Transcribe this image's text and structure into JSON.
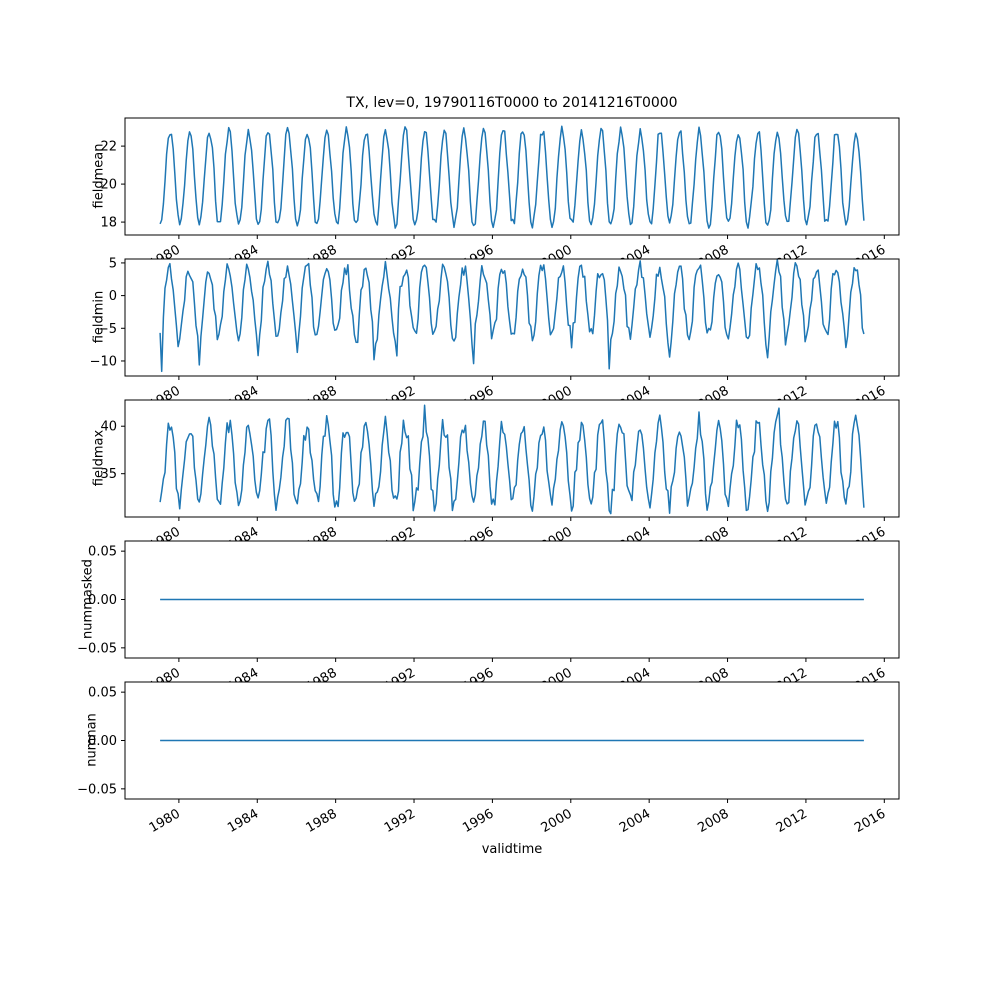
{
  "title": "TX, lev=0, 19790116T0000 to 20141216T0000",
  "xlabel": "validtime",
  "line_color": "#1f77b4",
  "x_ticks": [
    1980,
    1984,
    1988,
    1992,
    1996,
    2000,
    2004,
    2008,
    2012,
    2016
  ],
  "x_tick_rotation": 30,
  "xlim": [
    1977.25,
    2016.75
  ],
  "x_start_year": 1979,
  "n_points": 432,
  "chart_data": [
    {
      "type": "line",
      "name": "fieldmean",
      "ylabel": "fieldmean",
      "yticks": [
        18,
        20,
        22
      ],
      "ytick_labels": [
        "18",
        "20",
        "22"
      ],
      "ylim": [
        17.32,
        23.48
      ],
      "color": "#1f77b4",
      "seed": 11,
      "n_points": 432,
      "monthly_climatology": [
        17.9,
        18.1,
        18.9,
        20.1,
        21.4,
        22.4,
        22.8,
        22.6,
        21.8,
        20.6,
        19.2,
        18.2
      ],
      "noise_amplitude": 0.25,
      "events": {}
    },
    {
      "type": "line",
      "name": "fieldmin",
      "ylabel": "fieldmin",
      "yticks": [
        5,
        0,
        -5,
        -10
      ],
      "ytick_labels": [
        "5",
        "0",
        "−5",
        "−10"
      ],
      "ylim": [
        -12.3,
        5.6
      ],
      "color": "#1f77b4",
      "seed": 22,
      "n_points": 432,
      "monthly_climatology": [
        -6.0,
        -5.2,
        -3.0,
        0.2,
        2.5,
        3.9,
        4.3,
        3.7,
        1.8,
        -1.0,
        -3.8,
        -5.6
      ],
      "noise_amplitude": 1.2,
      "winter_spike": {
        "months": [
          0,
          1,
          11
        ],
        "prob": 0.18,
        "amount": -3.0
      },
      "events": {
        "1979-02": -11.6,
        "1981-01": -10.6,
        "1989-12": -9.8,
        "1995-01": -10.4,
        "2001-12": -11.2,
        "2010-01": -9.5
      }
    },
    {
      "type": "line",
      "name": "fieldmax",
      "ylabel": "fieldmax",
      "yticks": [
        35,
        40
      ],
      "ytick_labels": [
        "35",
        "40"
      ],
      "ylim": [
        30.44,
        42.76
      ],
      "color": "#1f77b4",
      "seed": 33,
      "n_points": 432,
      "monthly_climatology": [
        31.9,
        32.6,
        34.2,
        36.2,
        38.2,
        39.6,
        40.1,
        39.7,
        38.2,
        36.2,
        33.8,
        32.2
      ],
      "noise_amplitude": 1.1,
      "events": {
        "1992-07": 42.2,
        "2002-01": 30.8,
        "2006-07": 41.5,
        "2010-08": 41.9
      }
    },
    {
      "type": "line",
      "name": "nummasked",
      "ylabel": "nummasked",
      "yticks": [
        -0.05,
        0.0,
        0.05
      ],
      "ytick_labels": [
        "−0.05",
        "0.00",
        "0.05"
      ],
      "ylim": [
        -0.0605,
        0.0605
      ],
      "color": "#1f77b4",
      "seed": 44,
      "n_points": 432,
      "constant": 0,
      "events": {}
    },
    {
      "type": "line",
      "name": "numnan",
      "ylabel": "numnan",
      "yticks": [
        -0.05,
        0.0,
        0.05
      ],
      "ytick_labels": [
        "−0.05",
        "0.00",
        "0.05"
      ],
      "ylim": [
        -0.0605,
        0.0605
      ],
      "color": "#1f77b4",
      "seed": 55,
      "n_points": 432,
      "constant": 0,
      "events": {}
    }
  ]
}
